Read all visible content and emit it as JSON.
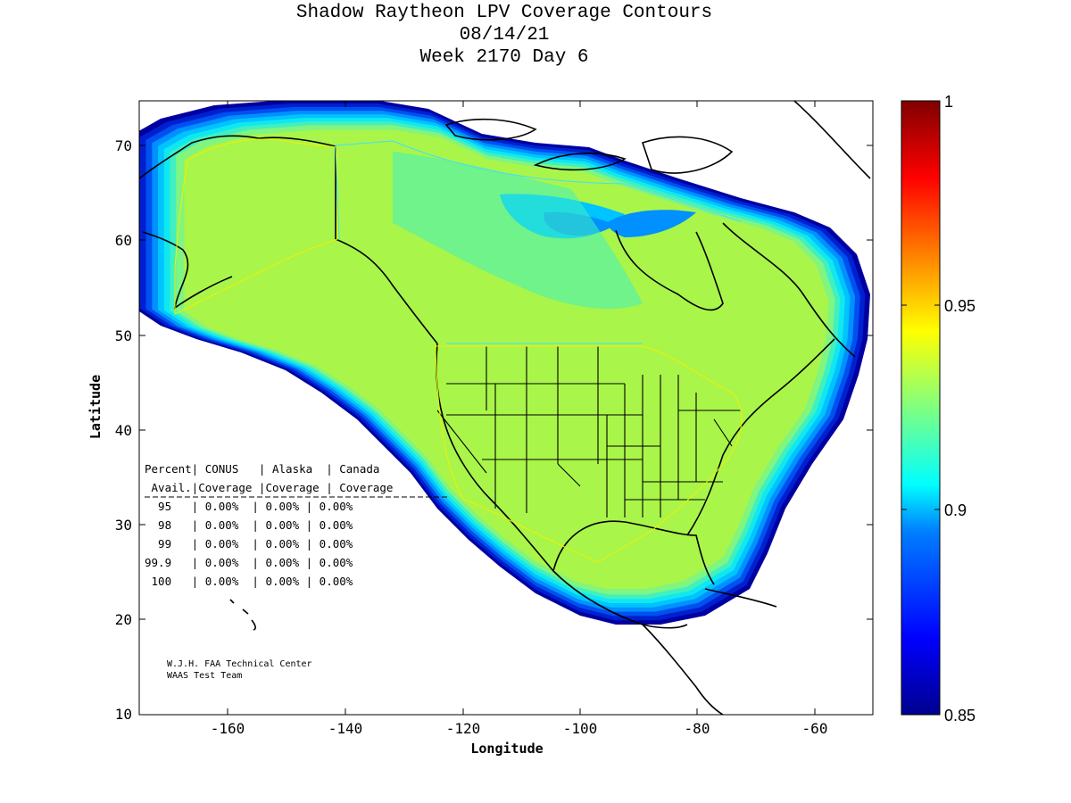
{
  "title": {
    "line1": "Shadow Raytheon LPV Coverage Contours",
    "line2": "08/14/21",
    "line3": "Week 2170 Day 6"
  },
  "axes": {
    "xlabel": "Longitude",
    "ylabel": "Latitude",
    "xlim": [
      -175,
      -50
    ],
    "ylim": [
      10,
      75
    ],
    "xticks": [
      "-160",
      "-140",
      "-120",
      "-100",
      "-80",
      "-60"
    ],
    "yticks": [
      "10",
      "20",
      "30",
      "40",
      "50",
      "60",
      "70"
    ]
  },
  "colorbar": {
    "range": [
      0.85,
      1
    ],
    "ticks": [
      "1",
      "0.95",
      "0.9",
      "0.85"
    ],
    "colormap": "jet",
    "colors": [
      "#00008f",
      "#0000ff",
      "#0080ff",
      "#00ffff",
      "#80ff80",
      "#ffff00",
      "#ff8000",
      "#ff0000",
      "#800000"
    ]
  },
  "map_colors": {
    "land_fill": "#a9f54a",
    "contour_bands": [
      "#0000a0",
      "#0020d0",
      "#0050f0",
      "#0090ff",
      "#00c4ff",
      "#10e8f0",
      "#40f0c0",
      "#80f580"
    ]
  },
  "table": {
    "header1": "Percent| CONUS   | Alaska  | Canada",
    "header2": " Avail.|Coverage |Coverage | Coverage",
    "rows": [
      "  95   | 0.00%  | 0.00% | 0.00%",
      "  98   | 0.00%  | 0.00% | 0.00%",
      "  99   | 0.00%  | 0.00% | 0.00%",
      "99.9   | 0.00%  | 0.00% | 0.00%",
      " 100   | 0.00%  | 0.00% | 0.00%"
    ]
  },
  "credit": {
    "line1": "W.J.H. FAA Technical Center",
    "line2": "WAAS Test Team"
  },
  "chart_data": {
    "type": "heatmap",
    "title": "Shadow Raytheon LPV Coverage Contours",
    "subtitle": "08/14/21 Week 2170 Day 6",
    "xlabel": "Longitude",
    "ylabel": "Latitude",
    "xlim": [
      -175,
      -50
    ],
    "ylim": [
      10,
      75
    ],
    "colorbar_range": [
      0.85,
      1
    ],
    "coverage_table": {
      "columns": [
        "Percent Avail.",
        "CONUS Coverage",
        "Alaska Coverage",
        "Canada Coverage"
      ],
      "rows": [
        [
          "95",
          "0.00%",
          "0.00%",
          "0.00%"
        ],
        [
          "98",
          "0.00%",
          "0.00%",
          "0.00%"
        ],
        [
          "99",
          "0.00%",
          "0.00%",
          "0.00%"
        ],
        [
          "99.9",
          "0.00%",
          "0.00%",
          "0.00%"
        ],
        [
          "100",
          "0.00%",
          "0.00%",
          "0.00%"
        ]
      ]
    }
  }
}
